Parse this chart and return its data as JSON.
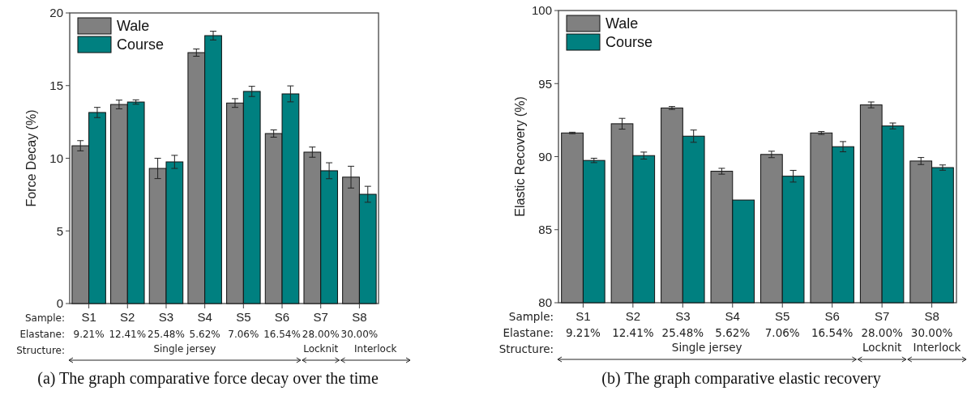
{
  "chart_data": [
    {
      "type": "bar",
      "title": "(a) The graph comparative force decay over the time",
      "ylabel": "Force Decay (%)",
      "categories": [
        "S1",
        "S2",
        "S3",
        "S4",
        "S5",
        "S6",
        "S7",
        "S8"
      ],
      "series": [
        {
          "name": "Wale",
          "color": "#808080",
          "values": [
            10.86,
            13.7,
            9.3,
            17.27,
            13.8,
            11.7,
            10.42,
            8.7
          ],
          "errors": [
            0.35,
            0.3,
            0.7,
            0.25,
            0.3,
            0.25,
            0.35,
            0.75
          ]
        },
        {
          "name": "Course",
          "color": "#008080",
          "values": [
            13.15,
            13.87,
            9.75,
            18.44,
            14.6,
            14.43,
            9.14,
            7.52
          ],
          "errors": [
            0.35,
            0.15,
            0.45,
            0.3,
            0.35,
            0.55,
            0.55,
            0.55
          ]
        }
      ],
      "ylim": [
        0,
        20
      ],
      "yticks": [
        0,
        5,
        10,
        15,
        20
      ],
      "grid": false,
      "legend": "top left",
      "annotations": [
        "Sample:",
        "Elastane:",
        "Structure:",
        "9.21%",
        "12.41%",
        "25.48%",
        "5.62%",
        "7.06%",
        "16.54%",
        "28.00%",
        "30.00%",
        "Single jersey",
        "Locknit",
        "Interlock"
      ]
    },
    {
      "type": "bar",
      "title": "(b) The graph comparative elastic recovery",
      "ylabel": "Elastic Recovery (%)",
      "categories": [
        "S1",
        "S2",
        "S3",
        "S4",
        "S5",
        "S6",
        "S7",
        "S8"
      ],
      "series": [
        {
          "name": "Wale",
          "color": "#808080",
          "values": [
            91.62,
            92.25,
            93.33,
            89.0,
            90.15,
            91.62,
            93.54,
            89.7
          ],
          "errors": [
            0.05,
            0.37,
            0.1,
            0.2,
            0.22,
            0.1,
            0.2,
            0.24
          ]
        },
        {
          "name": "Course",
          "color": "#008080",
          "values": [
            89.74,
            90.07,
            91.4,
            87.03,
            88.66,
            90.68,
            92.1,
            89.25
          ],
          "errors": [
            0.15,
            0.24,
            0.42,
            null,
            0.4,
            0.35,
            0.2,
            0.18
          ]
        }
      ],
      "ylim": [
        80,
        100
      ],
      "yticks": [
        80,
        85,
        90,
        95,
        100
      ],
      "grid": false,
      "legend": "top left",
      "annotations": [
        "Sample:",
        "Elastane:",
        "Structure:",
        "9.21%",
        "12.41%",
        "25.48%",
        "5.62%",
        "7.06%",
        "16.54%",
        "28.00%",
        "30.00%",
        "Single jersey",
        "Locknit",
        "Interlock"
      ]
    }
  ]
}
